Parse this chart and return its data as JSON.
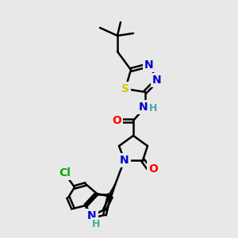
{
  "background_color": "#e8e8e8",
  "bond_color": "#000000",
  "atom_colors": {
    "N": "#0000cc",
    "O": "#ff0000",
    "S": "#cccc00",
    "Cl": "#00aa00",
    "H": "#44aaaa",
    "C": "#000000"
  },
  "figsize": [
    3.0,
    3.0
  ],
  "dpi": 100
}
